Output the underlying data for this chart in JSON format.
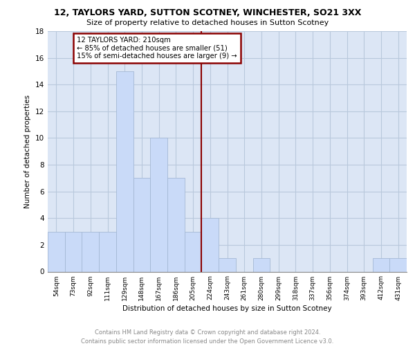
{
  "title1": "12, TAYLORS YARD, SUTTON SCOTNEY, WINCHESTER, SO21 3XX",
  "title2": "Size of property relative to detached houses in Sutton Scotney",
  "xlabel": "Distribution of detached houses by size in Sutton Scotney",
  "ylabel": "Number of detached properties",
  "footnote": "Contains HM Land Registry data © Crown copyright and database right 2024.\nContains public sector information licensed under the Open Government Licence v3.0.",
  "categories": [
    "54sqm",
    "73sqm",
    "92sqm",
    "111sqm",
    "129sqm",
    "148sqm",
    "167sqm",
    "186sqm",
    "205sqm",
    "224sqm",
    "243sqm",
    "261sqm",
    "280sqm",
    "299sqm",
    "318sqm",
    "337sqm",
    "356sqm",
    "374sqm",
    "393sqm",
    "412sqm",
    "431sqm"
  ],
  "values": [
    3,
    3,
    3,
    3,
    15,
    7,
    10,
    7,
    3,
    4,
    1,
    0,
    1,
    0,
    0,
    0,
    0,
    0,
    0,
    1,
    1
  ],
  "bar_color": "#c9daf8",
  "bar_edge_color": "#a4b8d4",
  "grid_color": "#b8c8dc",
  "background_color": "#dce6f5",
  "property_line_x": 8.5,
  "annotation_line1": "12 TAYLORS YARD: 210sqm",
  "annotation_line2": "← 85% of detached houses are smaller (51)",
  "annotation_line3": "15% of semi-detached houses are larger (9) →",
  "annotation_box_facecolor": "#ffffff",
  "annotation_border_color": "#8b0000",
  "vline_color": "#8b0000",
  "ylim": [
    0,
    18
  ],
  "yticks": [
    0,
    2,
    4,
    6,
    8,
    10,
    12,
    14,
    16,
    18
  ]
}
